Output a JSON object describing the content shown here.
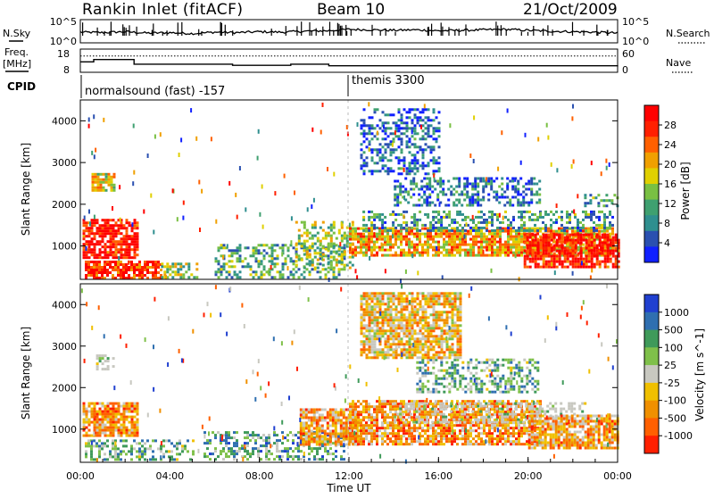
{
  "chart_data": [
    {
      "type": "line",
      "panel": "noise",
      "title": "Rankin Inlet (fitACF)",
      "beam": "Beam 10",
      "date": "21/Oct/2009",
      "left_label": "N.Sky",
      "right_label": "N.Search",
      "left_ticks": [
        "10^5",
        "10^0"
      ],
      "right_ticks": [
        "10^5",
        "10^0"
      ],
      "series": [
        {
          "name": "N.Sky",
          "x": [
            0,
            1,
            2,
            3,
            4,
            5,
            6,
            7,
            8,
            9,
            10,
            11,
            12,
            13,
            14,
            15,
            16,
            17,
            18,
            19,
            20,
            21,
            22,
            23,
            24
          ],
          "values": [
            2.3,
            2.2,
            2.4,
            2.1,
            2.2,
            2.0,
            2.3,
            2.2,
            2.4,
            2.3,
            2.5,
            2.6,
            2.9,
            2.8,
            2.7,
            2.8,
            2.6,
            2.7,
            2.8,
            2.9,
            2.7,
            2.5,
            2.4,
            2.3,
            2.1
          ]
        }
      ]
    },
    {
      "type": "line",
      "panel": "frequency",
      "left_label": "Freq.",
      "left_unit": "[MHz]",
      "right_label": "Nave",
      "left_ticks": [
        "18",
        "8"
      ],
      "right_ticks": [
        "60",
        "0"
      ],
      "ylim": [
        8,
        18
      ],
      "series": [
        {
          "name": "Freq.",
          "x": [
            0.0,
            0.6,
            1.0,
            2.4,
            2.6,
            6.6,
            6.8,
            9.2,
            9.4,
            10.2,
            11.0,
            11.1,
            24.0
          ],
          "values": [
            12.5,
            13.5,
            13.5,
            11.5,
            11.5,
            11.5,
            11.0,
            11.0,
            11.5,
            11.5,
            11.5,
            10.8,
            11.0
          ]
        }
      ],
      "nave_level": 42
    },
    {
      "type": "table",
      "panel": "cpid",
      "label": "CPID",
      "entries": [
        {
          "start": 0,
          "end": 12,
          "text": "normalsound (fast) -157"
        },
        {
          "start": 12,
          "end": 24,
          "text": "themis 3300"
        }
      ]
    },
    {
      "type": "heatmap",
      "panel": "power",
      "ylabel": "Slant Range [km]",
      "ylim": [
        200,
        4500
      ],
      "yticks": [
        1000,
        2000,
        3000,
        4000
      ],
      "xlim": [
        0,
        24
      ],
      "colorbar": {
        "label": "Power [dB]",
        "ticks": [
          "4",
          "8",
          "12",
          "16",
          "20",
          "24",
          "28"
        ],
        "colors": [
          "#1020ff",
          "#2a50b0",
          "#2f8f8f",
          "#3fa070",
          "#79c043",
          "#e0d000",
          "#f0a000",
          "#ff6000",
          "#ff2000",
          "#ff0000"
        ]
      },
      "echo_regions": [
        {
          "x0": 0.1,
          "x1": 2.6,
          "y0": 750,
          "y1": 1650,
          "level": 0.92
        },
        {
          "x0": 0.2,
          "x1": 3.6,
          "y0": 250,
          "y1": 650,
          "level": 0.88
        },
        {
          "x0": 0.5,
          "x1": 1.5,
          "y0": 2350,
          "y1": 2750,
          "level": 0.55
        },
        {
          "x0": 3.6,
          "x1": 5.2,
          "y0": 250,
          "y1": 600,
          "level": 0.45
        },
        {
          "x0": 6.0,
          "x1": 11.8,
          "y0": 250,
          "y1": 1050,
          "level": 0.35
        },
        {
          "x0": 9.6,
          "x1": 12.2,
          "y0": 500,
          "y1": 1600,
          "level": 0.45
        },
        {
          "x0": 12.0,
          "x1": 23.8,
          "y0": 800,
          "y1": 1450,
          "level": 0.65
        },
        {
          "x0": 12.6,
          "x1": 23.8,
          "y0": 1350,
          "y1": 1850,
          "level": 0.3
        },
        {
          "x0": 14.0,
          "x1": 20.5,
          "y0": 1950,
          "y1": 2650,
          "level": 0.22
        },
        {
          "x0": 19.8,
          "x1": 24.0,
          "y0": 500,
          "y1": 1300,
          "level": 0.9
        },
        {
          "x0": 12.5,
          "x1": 16.0,
          "y0": 2700,
          "y1": 4300,
          "level": 0.18
        },
        {
          "x0": 22.5,
          "x1": 24.0,
          "y0": 1950,
          "y1": 2250,
          "level": 0.3
        }
      ]
    },
    {
      "type": "heatmap",
      "panel": "velocity",
      "ylabel": "Slant Range [km]",
      "xlabel": "Time UT",
      "ylim": [
        200,
        4500
      ],
      "yticks": [
        1000,
        2000,
        3000,
        4000
      ],
      "xlim": [
        0,
        24
      ],
      "xticks": [
        "00:00",
        "04:00",
        "08:00",
        "12:00",
        "16:00",
        "20:00",
        "00:00"
      ],
      "colorbar": {
        "label": "Velocity [m s^-1]",
        "ticks": [
          "1000",
          "500",
          "100",
          "25",
          "-25",
          "-100",
          "-500",
          "-1000"
        ],
        "colors": [
          "#2040d0",
          "#2f6fb0",
          "#3f9a5a",
          "#7fc04a",
          "#c8c8c0",
          "#f0c000",
          "#f09000",
          "#ff6000",
          "#ff2000"
        ]
      },
      "echo_regions": [
        {
          "x0": 0.1,
          "x1": 2.6,
          "y0": 850,
          "y1": 1650,
          "level": 0.72
        },
        {
          "x0": 0.2,
          "x1": 5.0,
          "y0": 250,
          "y1": 750,
          "level": 0.35
        },
        {
          "x0": 0.7,
          "x1": 1.5,
          "y0": 2450,
          "y1": 2800,
          "level": 0.45
        },
        {
          "x0": 5.5,
          "x1": 11.8,
          "y0": 250,
          "y1": 950,
          "level": 0.3
        },
        {
          "x0": 9.8,
          "x1": 12.4,
          "y0": 600,
          "y1": 1500,
          "level": 0.7
        },
        {
          "x0": 12.0,
          "x1": 20.5,
          "y0": 650,
          "y1": 1700,
          "level": 0.72
        },
        {
          "x0": 14.0,
          "x1": 22.5,
          "y0": 1150,
          "y1": 1650,
          "level": 0.45
        },
        {
          "x0": 15.0,
          "x1": 20.5,
          "y0": 1900,
          "y1": 2700,
          "level": 0.35
        },
        {
          "x0": 20.0,
          "x1": 24.0,
          "y0": 550,
          "y1": 1350,
          "level": 0.68
        },
        {
          "x0": 12.5,
          "x1": 17.0,
          "y0": 2700,
          "y1": 4300,
          "level": 0.62
        }
      ]
    }
  ]
}
